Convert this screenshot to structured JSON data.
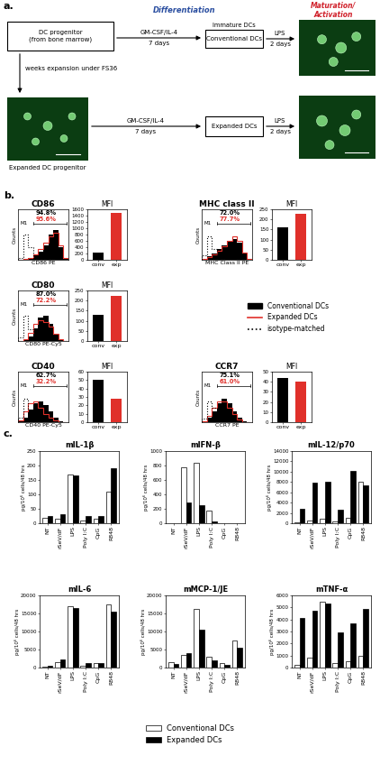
{
  "panel_labels": [
    "a.",
    "b.",
    "c."
  ],
  "diagram": {
    "stage_labels": [
      {
        "text": "Differentiation",
        "color": "#2a4ea0"
      },
      {
        "text": "Maturation/\nActivation",
        "color": "#d0202a"
      }
    ],
    "boxes": [
      "DC progenitor\n(from bone marrow)",
      "Conventional DCs",
      "Expanded DCs"
    ],
    "box_note": "Immature DCs",
    "arrows": [
      {
        "above": "GM-CSF/IL-4",
        "below": "7 days"
      },
      {
        "above": "LPS",
        "below": "2 days"
      },
      {
        "above": "GM-CSF/IL-4",
        "below": "7 days"
      },
      {
        "above": "LPS",
        "below": "2 days"
      }
    ],
    "expansion_label": "weeks expansion under FS36",
    "image_caption": "Expanded DC progenitor"
  },
  "chart_data": [
    {
      "type": "histogram",
      "title": "CD86",
      "xlabel": "CD86 PE",
      "ylabel": "Counts",
      "log": "x",
      "tick_labels": false,
      "xlim": [
        1,
        10000
      ],
      "ylim": [
        0,
        120
      ],
      "bins": [
        1,
        2.5,
        6.3,
        16,
        40,
        100,
        250,
        630,
        1600,
        4000,
        10000
      ],
      "series": [
        {
          "name": "Conventional DCs",
          "color": "#000000",
          "type": "area",
          "values": [
            0,
            2,
            5,
            10,
            20,
            35,
            60,
            70,
            30,
            3
          ]
        },
        {
          "name": "Expanded DCs",
          "color": "#e0302a",
          "type": "line",
          "line_style": "solid",
          "values": [
            0,
            2,
            5,
            12,
            25,
            40,
            55,
            65,
            35,
            5
          ]
        },
        {
          "name": "isotype-matched",
          "color": "#000000",
          "type": "line",
          "line_style": "dotted",
          "values": [
            5,
            60,
            30,
            5,
            0,
            0,
            0,
            0,
            0,
            0
          ]
        }
      ],
      "annotations": [
        {
          "text": "M1",
          "color": "#000000"
        },
        {
          "text": "94.8%",
          "color": "#000000"
        },
        {
          "text": "95.6%",
          "color": "#e0302a"
        }
      ]
    },
    {
      "type": "bar",
      "title": "MFI",
      "categories": [
        "conv",
        "exp"
      ],
      "values": [
        220,
        1480
      ],
      "colors": [
        "#000000",
        "#e0302a"
      ],
      "ylim": [
        0,
        1600
      ],
      "yticks": [
        0,
        200,
        400,
        600,
        800,
        1000,
        1200,
        1400,
        1600
      ]
    },
    {
      "type": "histogram",
      "title": "MHC class II",
      "xlabel": "MHC Class II PE",
      "ylabel": "Counts",
      "log": "x",
      "tick_labels": false,
      "xlim": [
        1,
        10000
      ],
      "ylim": [
        0,
        120
      ],
      "bins": [
        1,
        2.5,
        6.3,
        16,
        40,
        100,
        250,
        630,
        1600,
        4000,
        10000
      ],
      "series": [
        {
          "name": "Conventional DCs",
          "color": "#000000",
          "type": "area",
          "values": [
            2,
            8,
            15,
            25,
            35,
            45,
            50,
            40,
            15,
            2
          ]
        },
        {
          "name": "Expanded DCs",
          "color": "#e0302a",
          "type": "line",
          "line_style": "solid",
          "values": [
            2,
            6,
            12,
            22,
            32,
            45,
            55,
            45,
            18,
            3
          ]
        },
        {
          "name": "isotype-matched",
          "color": "#000000",
          "type": "line",
          "line_style": "dotted",
          "values": [
            10,
            55,
            25,
            5,
            0,
            0,
            0,
            0,
            0,
            0
          ]
        }
      ],
      "annotations": [
        {
          "text": "M1",
          "color": "#000000"
        },
        {
          "text": "72.0%",
          "color": "#000000"
        },
        {
          "text": "77.7%",
          "color": "#e0302a"
        }
      ]
    },
    {
      "type": "bar",
      "title": "MFI",
      "categories": [
        "conv",
        "exp"
      ],
      "values": [
        160,
        228
      ],
      "colors": [
        "#000000",
        "#e0302a"
      ],
      "ylim": [
        0,
        250
      ],
      "yticks": [
        0,
        50,
        100,
        150,
        200,
        250
      ]
    },
    {
      "type": "histogram",
      "title": "CD80",
      "xlabel": "CD80 PE-Cy5",
      "ylabel": "Counts",
      "log": "x",
      "tick_labels": false,
      "xlim": [
        1,
        10000
      ],
      "ylim": [
        0,
        120
      ],
      "bins": [
        1,
        2.5,
        6.3,
        16,
        40,
        100,
        250,
        630,
        1600,
        4000,
        10000
      ],
      "series": [
        {
          "name": "Conventional DCs",
          "color": "#000000",
          "type": "area",
          "values": [
            0,
            3,
            10,
            30,
            55,
            60,
            40,
            15,
            3,
            0
          ]
        },
        {
          "name": "Expanded DCs",
          "color": "#e0302a",
          "type": "line",
          "line_style": "solid",
          "values": [
            0,
            5,
            20,
            40,
            50,
            45,
            35,
            18,
            5,
            0
          ]
        },
        {
          "name": "isotype-matched",
          "color": "#000000",
          "type": "line",
          "line_style": "dotted",
          "values": [
            8,
            60,
            28,
            4,
            0,
            0,
            0,
            0,
            0,
            0
          ]
        }
      ],
      "annotations": [
        {
          "text": "M1",
          "color": "#000000"
        },
        {
          "text": "87.0%",
          "color": "#000000"
        },
        {
          "text": "72.2%",
          "color": "#e0302a"
        }
      ]
    },
    {
      "type": "bar",
      "title": "MFI",
      "categories": [
        "conv",
        "exp"
      ],
      "values": [
        130,
        222
      ],
      "colors": [
        "#000000",
        "#e0302a"
      ],
      "ylim": [
        0,
        250
      ],
      "yticks": [
        0,
        50,
        100,
        150,
        200,
        250
      ]
    },
    {
      "type": "histogram",
      "title": "CD40",
      "xlabel": "CD40 PE-Cy5",
      "ylabel": "Counts",
      "log": "x",
      "tick_labels": false,
      "xlim": [
        1,
        10000
      ],
      "ylim": [
        0,
        120
      ],
      "bins": [
        1,
        2.5,
        6.3,
        16,
        40,
        100,
        250,
        630,
        1600,
        4000,
        10000
      ],
      "series": [
        {
          "name": "Conventional DCs",
          "color": "#000000",
          "type": "area",
          "values": [
            2,
            10,
            30,
            45,
            50,
            40,
            25,
            10,
            2,
            0
          ]
        },
        {
          "name": "Expanded DCs",
          "color": "#e0302a",
          "type": "line",
          "line_style": "solid",
          "values": [
            5,
            25,
            45,
            50,
            35,
            20,
            10,
            4,
            1,
            0
          ]
        },
        {
          "name": "isotype-matched",
          "color": "#000000",
          "type": "line",
          "line_style": "dotted",
          "values": [
            10,
            55,
            30,
            5,
            0,
            0,
            0,
            0,
            0,
            0
          ]
        }
      ],
      "annotations": [
        {
          "text": "M1",
          "color": "#000000"
        },
        {
          "text": "62.7%",
          "color": "#000000"
        },
        {
          "text": "32.2%",
          "color": "#e0302a"
        }
      ]
    },
    {
      "type": "bar",
      "title": "MFI",
      "categories": [
        "conv",
        "exp"
      ],
      "values": [
        50,
        28
      ],
      "colors": [
        "#000000",
        "#e0302a"
      ],
      "ylim": [
        0,
        60
      ],
      "yticks": [
        0,
        10,
        20,
        30,
        40,
        50,
        60
      ]
    },
    {
      "type": "histogram",
      "title": "CCR7",
      "xlabel": "CCR7 PE",
      "ylabel": "Counts",
      "log": "x",
      "tick_labels": false,
      "xlim": [
        1,
        10000
      ],
      "ylim": [
        0,
        120
      ],
      "bins": [
        1,
        2.5,
        6.3,
        16,
        40,
        100,
        250,
        630,
        1600,
        4000,
        10000
      ],
      "series": [
        {
          "name": "Conventional DCs",
          "color": "#000000",
          "type": "area",
          "values": [
            2,
            10,
            25,
            45,
            55,
            45,
            25,
            10,
            2,
            0
          ]
        },
        {
          "name": "Expanded DCs",
          "color": "#e0302a",
          "type": "line",
          "line_style": "solid",
          "values": [
            3,
            15,
            35,
            50,
            50,
            35,
            20,
            6,
            1,
            0
          ]
        },
        {
          "name": "isotype-matched",
          "color": "#000000",
          "type": "line",
          "line_style": "dotted",
          "values": [
            8,
            50,
            35,
            8,
            0,
            0,
            0,
            0,
            0,
            0
          ]
        }
      ],
      "annotations": [
        {
          "text": "M1",
          "color": "#000000"
        },
        {
          "text": "75.1%",
          "color": "#000000"
        },
        {
          "text": "61.0%",
          "color": "#e0302a"
        }
      ]
    },
    {
      "type": "bar",
      "title": "MFI",
      "categories": [
        "conv",
        "exp"
      ],
      "values": [
        44,
        40
      ],
      "colors": [
        "#000000",
        "#e0302a"
      ],
      "ylim": [
        0,
        50
      ],
      "yticks": [
        0,
        10,
        20,
        30,
        40,
        50
      ]
    },
    {
      "type": "bar",
      "title": "mIL-1β",
      "ylabel": "pg/10⁶ cells/48 hrs",
      "categories": [
        "NT",
        "rSeV/dF",
        "LPS",
        "Poly I:C",
        "CpG",
        "R848"
      ],
      "series": [
        {
          "name": "Conventional DCs",
          "color": "#ffffff",
          "values": [
            20,
            15,
            170,
            10,
            15,
            110
          ]
        },
        {
          "name": "Expanded DCs",
          "color": "#000000",
          "values": [
            25,
            30,
            165,
            25,
            25,
            190
          ]
        }
      ],
      "ylim": [
        0,
        250
      ],
      "yticks": [
        0,
        50,
        100,
        150,
        200,
        250
      ]
    },
    {
      "type": "bar",
      "title": "mIFN-β",
      "ylabel": "pg/10⁶ cells/48 hrs",
      "categories": [
        "NT",
        "rSeV/dF",
        "LPS",
        "Poly I:C",
        "CpG",
        "R848"
      ],
      "series": [
        {
          "name": "Conventional DCs",
          "color": "#ffffff",
          "values": [
            0,
            780,
            840,
            170,
            0,
            0
          ]
        },
        {
          "name": "Expanded DCs",
          "color": "#000000",
          "values": [
            0,
            290,
            250,
            20,
            0,
            0
          ]
        }
      ],
      "ylim": [
        0,
        1000
      ],
      "yticks": [
        0,
        200,
        400,
        600,
        800,
        1000
      ]
    },
    {
      "type": "bar",
      "title": "mIL-12/p70",
      "ylabel": "pg/10⁶ cells/48 hrs",
      "categories": [
        "NT",
        "rSeV/dF",
        "LPS",
        "Poly I:C",
        "CpG",
        "R848"
      ],
      "series": [
        {
          "name": "Conventional DCs",
          "color": "#ffffff",
          "values": [
            200,
            500,
            800,
            400,
            1000,
            8000
          ]
        },
        {
          "name": "Expanded DCs",
          "color": "#000000",
          "values": [
            2800,
            7800,
            8000,
            2700,
            10200,
            7300
          ]
        }
      ],
      "ylim": [
        0,
        14000
      ],
      "yticks": [
        0,
        2000,
        4000,
        6000,
        8000,
        10000,
        12000,
        14000
      ]
    },
    {
      "type": "bar",
      "title": "mIL-6",
      "ylabel": "pg/10⁶ cells/48 hrs",
      "categories": [
        "NT",
        "rSeV/dF",
        "LPS",
        "Poly I:C",
        "CpG",
        "R848"
      ],
      "series": [
        {
          "name": "Conventional DCs",
          "color": "#ffffff",
          "values": [
            200,
            1500,
            17000,
            500,
            1200,
            17500
          ]
        },
        {
          "name": "Expanded DCs",
          "color": "#000000",
          "values": [
            500,
            2200,
            16500,
            1200,
            1300,
            15500
          ]
        }
      ],
      "ylim": [
        0,
        20000
      ],
      "yticks": [
        0,
        5000,
        10000,
        15000,
        20000
      ]
    },
    {
      "type": "bar",
      "title": "mMCP-1/JE",
      "ylabel": "pg/10⁶ cells/48 hrs",
      "categories": [
        "NT",
        "rSeV/dF",
        "LPS",
        "Poly I:C",
        "CpG",
        "R848"
      ],
      "series": [
        {
          "name": "Conventional DCs",
          "color": "#ffffff",
          "values": [
            1500,
            3500,
            16200,
            3000,
            1200,
            7500
          ]
        },
        {
          "name": "Expanded DCs",
          "color": "#000000",
          "values": [
            1000,
            4000,
            10500,
            2000,
            800,
            5500
          ]
        }
      ],
      "ylim": [
        0,
        20000
      ],
      "yticks": [
        0,
        5000,
        10000,
        15000,
        20000
      ]
    },
    {
      "type": "bar",
      "title": "mTNF-α",
      "ylabel": "pg/10⁶ cells/48 hrs",
      "categories": [
        "NT",
        "rSeV/dF",
        "LPS",
        "Poly I:C",
        "CpG",
        "R848"
      ],
      "series": [
        {
          "name": "Conventional DCs",
          "color": "#ffffff",
          "values": [
            200,
            800,
            5500,
            400,
            500,
            1000
          ]
        },
        {
          "name": "Expanded DCs",
          "color": "#000000",
          "values": [
            4100,
            4700,
            5300,
            2900,
            3700,
            4900
          ]
        }
      ],
      "ylim": [
        0,
        6000
      ],
      "yticks": [
        0,
        1000,
        2000,
        3000,
        4000,
        5000,
        6000
      ]
    }
  ]
}
